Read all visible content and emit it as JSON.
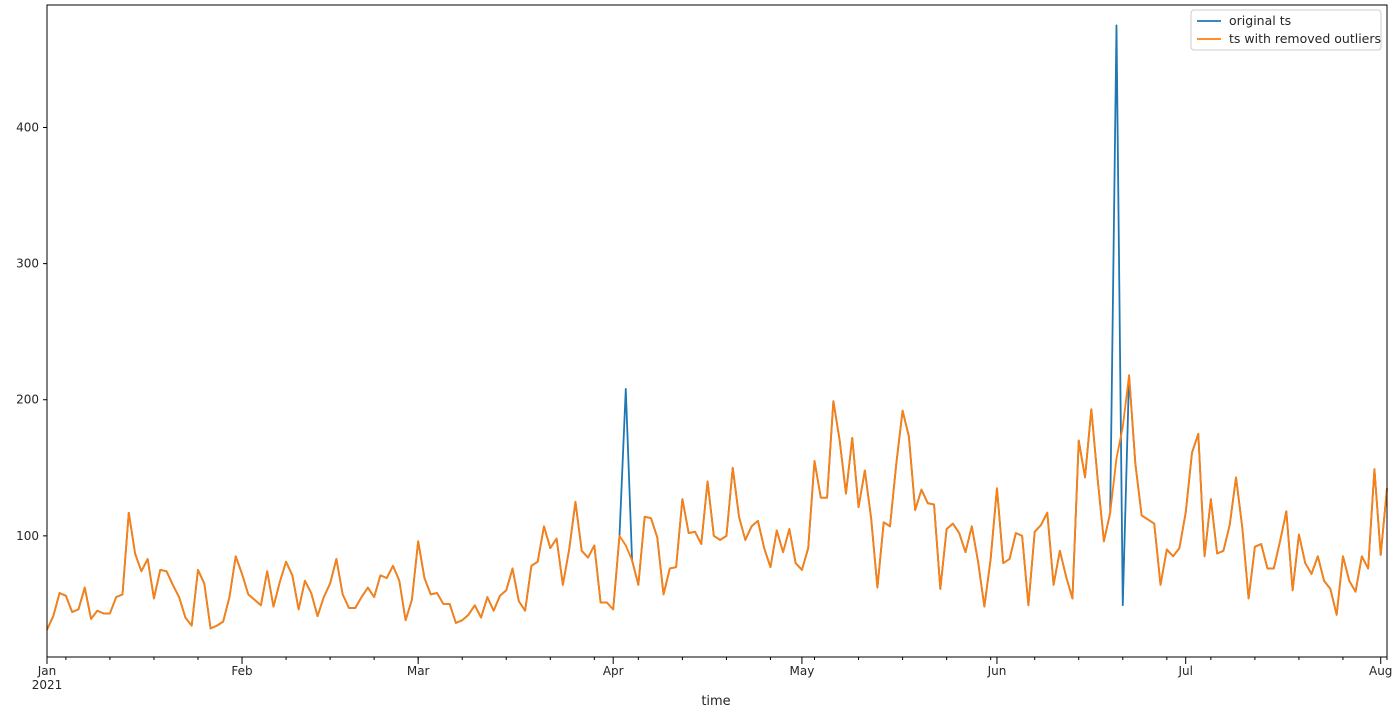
{
  "chart_data": {
    "type": "line",
    "xlabel": "time",
    "ylabel": "",
    "x_start": "2021-01-01",
    "x_end": "2021-08-02",
    "ylim": [
      11,
      490
    ],
    "y_ticks": [
      100,
      200,
      300,
      400
    ],
    "x_major_ticks": [
      {
        "date": "2021-01-01",
        "label": "Jan",
        "sublabel": "2021"
      },
      {
        "date": "2021-02-01",
        "label": "Feb",
        "sublabel": ""
      },
      {
        "date": "2021-03-01",
        "label": "Mar",
        "sublabel": ""
      },
      {
        "date": "2021-04-01",
        "label": "Apr",
        "sublabel": ""
      },
      {
        "date": "2021-05-01",
        "label": "May",
        "sublabel": ""
      },
      {
        "date": "2021-06-01",
        "label": "Jun",
        "sublabel": ""
      },
      {
        "date": "2021-07-01",
        "label": "Jul",
        "sublabel": ""
      },
      {
        "date": "2021-08-01",
        "label": "Aug",
        "sublabel": ""
      }
    ],
    "grid": false,
    "legend_position": "top-right",
    "series": [
      {
        "name": "original ts",
        "color": "#1f77b4",
        "values": [
          31,
          41,
          58,
          56,
          44,
          46,
          62,
          39,
          45,
          43,
          43,
          55,
          57,
          117,
          87,
          74,
          83,
          54,
          75,
          74,
          64,
          55,
          40,
          34,
          75,
          65,
          32,
          34,
          37,
          55,
          85,
          72,
          57,
          53,
          49,
          74,
          48,
          66,
          81,
          71,
          46,
          67,
          58,
          41,
          55,
          65,
          83,
          57,
          47,
          47,
          55,
          62,
          55,
          71,
          69,
          78,
          67,
          38,
          53,
          96,
          69,
          57,
          58,
          50,
          50,
          36,
          38,
          42,
          49,
          40,
          55,
          45,
          56,
          60,
          76,
          52,
          45,
          78,
          81,
          107,
          91,
          98,
          64,
          90,
          125,
          89,
          84,
          93,
          51,
          51,
          46,
          100,
          208,
          82,
          64,
          114,
          113,
          99,
          57,
          76,
          77,
          127,
          102,
          103,
          94,
          140,
          100,
          97,
          100,
          150,
          114,
          97,
          107,
          111,
          91,
          77,
          104,
          88,
          105,
          80,
          75,
          91,
          155,
          128,
          128,
          199,
          170,
          131,
          172,
          121,
          148,
          113,
          62,
          110,
          107,
          153,
          192,
          173,
          119,
          134,
          124,
          123,
          61,
          105,
          109,
          102,
          88,
          107,
          81,
          48,
          83,
          135,
          80,
          83,
          102,
          100,
          49,
          103,
          108,
          117,
          64,
          89,
          70,
          54,
          170,
          143,
          193,
          142,
          96,
          117,
          475,
          49,
          218,
          153,
          115,
          112,
          109,
          64,
          90,
          85,
          91,
          117,
          161,
          175,
          85,
          127,
          87,
          89,
          108,
          143,
          106,
          54,
          92,
          94,
          76,
          76,
          96,
          118,
          60,
          101,
          80,
          72,
          85,
          67,
          61,
          42,
          85,
          67,
          59,
          85,
          76,
          149,
          86,
          135
        ]
      },
      {
        "name": "ts with removed outliers",
        "color": "#ff7f0e",
        "values": [
          31,
          41,
          58,
          56,
          44,
          46,
          62,
          39,
          45,
          43,
          43,
          55,
          57,
          117,
          87,
          74,
          83,
          54,
          75,
          74,
          64,
          55,
          40,
          34,
          75,
          65,
          32,
          34,
          37,
          55,
          85,
          72,
          57,
          53,
          49,
          74,
          48,
          66,
          81,
          71,
          46,
          67,
          58,
          41,
          55,
          65,
          83,
          57,
          47,
          47,
          55,
          62,
          55,
          71,
          69,
          78,
          67,
          38,
          53,
          96,
          69,
          57,
          58,
          50,
          50,
          36,
          38,
          42,
          49,
          40,
          55,
          45,
          56,
          60,
          76,
          52,
          45,
          78,
          81,
          107,
          91,
          98,
          64,
          90,
          125,
          89,
          84,
          93,
          51,
          51,
          46,
          100,
          93,
          82,
          64,
          114,
          113,
          99,
          57,
          76,
          77,
          127,
          102,
          103,
          94,
          140,
          100,
          97,
          100,
          150,
          114,
          97,
          107,
          111,
          91,
          77,
          104,
          88,
          105,
          80,
          75,
          91,
          155,
          128,
          128,
          199,
          170,
          131,
          172,
          121,
          148,
          113,
          62,
          110,
          107,
          153,
          192,
          173,
          119,
          134,
          124,
          123,
          61,
          105,
          109,
          102,
          88,
          107,
          81,
          48,
          83,
          135,
          80,
          83,
          102,
          100,
          49,
          103,
          108,
          117,
          64,
          89,
          70,
          54,
          170,
          143,
          193,
          142,
          96,
          117,
          157,
          180,
          218,
          153,
          115,
          112,
          109,
          64,
          90,
          85,
          91,
          117,
          161,
          175,
          85,
          127,
          87,
          89,
          108,
          143,
          106,
          54,
          92,
          94,
          76,
          76,
          96,
          118,
          60,
          101,
          80,
          72,
          85,
          67,
          61,
          42,
          85,
          67,
          59,
          85,
          76,
          149,
          86,
          135
        ]
      }
    ]
  }
}
